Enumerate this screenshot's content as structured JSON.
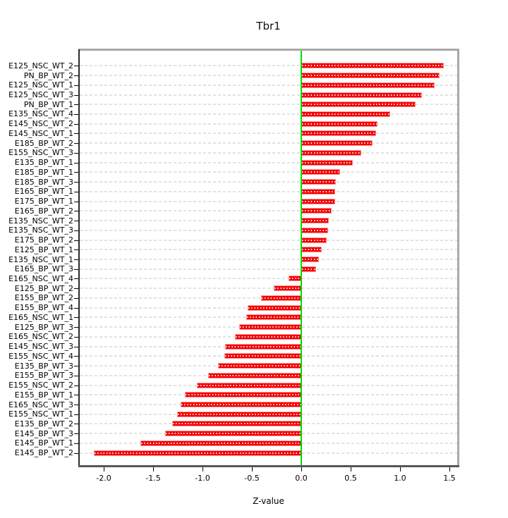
{
  "title": "Tbr1",
  "colors": {
    "bar": "#f30000",
    "bar_border": "#ff9494",
    "zero_line": "#00dd00",
    "grid": "#e2e2e2",
    "box_gray": "#a8a8a8",
    "axis_dark": "#2c2c2c"
  },
  "chart_data": {
    "type": "bar",
    "orientation": "horizontal",
    "title": "Tbr1",
    "xlabel": "Z-value",
    "ylabel": "",
    "grid": true,
    "legend": "none",
    "xlim": [
      -2.243,
      1.579
    ],
    "x_ticks": [
      -2.0,
      -1.5,
      -1.0,
      -0.5,
      0.0,
      0.5,
      1.0,
      1.5
    ],
    "x_tick_labels": [
      "-2.0",
      "-1.5",
      "-1.0",
      "-0.5",
      "0.0",
      "0.5",
      "1.0",
      "1.5"
    ],
    "zero_line": 0.0,
    "categories": [
      "E125_NSC_WT_2",
      "PN_BP_WT_2",
      "E125_NSC_WT_1",
      "E125_NSC_WT_3",
      "PN_BP_WT_1",
      "E135_NSC_WT_4",
      "E145_NSC_WT_2",
      "E145_NSC_WT_1",
      "E185_BP_WT_2",
      "E155_NSC_WT_3",
      "E135_BP_WT_1",
      "E185_BP_WT_1",
      "E185_BP_WT_3",
      "E165_BP_WT_1",
      "E175_BP_WT_1",
      "E165_BP_WT_2",
      "E135_NSC_WT_2",
      "E135_NSC_WT_3",
      "E175_BP_WT_2",
      "E125_BP_WT_1",
      "E135_NSC_WT_1",
      "E165_BP_WT_3",
      "E165_NSC_WT_4",
      "E125_BP_WT_2",
      "E155_BP_WT_2",
      "E155_BP_WT_4",
      "E165_NSC_WT_1",
      "E125_BP_WT_3",
      "E165_NSC_WT_2",
      "E145_NSC_WT_3",
      "E155_NSC_WT_4",
      "E135_BP_WT_3",
      "E155_BP_WT_3",
      "E155_NSC_WT_2",
      "E155_BP_WT_1",
      "E165_NSC_WT_3",
      "E155_NSC_WT_1",
      "E135_BP_WT_2",
      "E145_BP_WT_3",
      "E145_BP_WT_1",
      "E145_BP_WT_2"
    ],
    "values": [
      1.44,
      1.4,
      1.35,
      1.22,
      1.16,
      0.9,
      0.77,
      0.76,
      0.72,
      0.61,
      0.52,
      0.39,
      0.35,
      0.34,
      0.34,
      0.31,
      0.28,
      0.27,
      0.26,
      0.21,
      0.18,
      0.15,
      -0.13,
      -0.28,
      -0.41,
      -0.54,
      -0.56,
      -0.63,
      -0.67,
      -0.77,
      -0.78,
      -0.84,
      -0.94,
      -1.06,
      -1.18,
      -1.22,
      -1.26,
      -1.31,
      -1.38,
      -1.63,
      -2.1
    ]
  }
}
